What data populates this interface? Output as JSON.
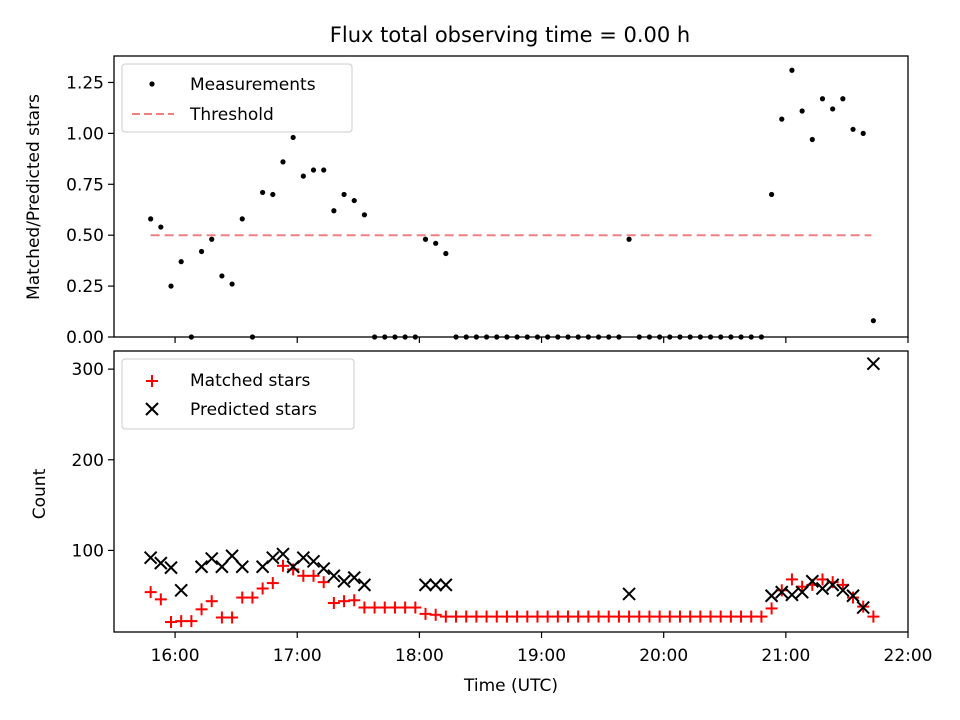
{
  "chart_data": [
    {
      "type": "scatter",
      "title": "Flux total observing time = 0.00 h",
      "ylabel": "Matched/Predicted stars",
      "xlabel": "",
      "xlim": [
        "15:30",
        "22:00"
      ],
      "ylim": [
        0,
        1.38
      ],
      "yticks": [
        0,
        0.25,
        0.5,
        0.75,
        1.0,
        1.25
      ],
      "ytick_labels": [
        "0.00",
        "0.25",
        "0.50",
        "0.75",
        "1.00",
        "1.25"
      ],
      "xticks": [
        "16:00",
        "17:00",
        "18:00",
        "19:00",
        "20:00",
        "21:00",
        "22:00"
      ],
      "legend": {
        "placement": "upper left",
        "entries": [
          "Measurements",
          "Threshold"
        ]
      },
      "threshold": {
        "name": "Threshold",
        "value": 0.5,
        "x_range": [
          "15:48",
          "21:42"
        ],
        "color": "#f08080",
        "style": "dashed"
      },
      "series": [
        {
          "name": "Measurements",
          "marker": "dot",
          "color": "#000000",
          "points": [
            [
              "15:48",
              0.58
            ],
            [
              "15:53",
              0.54
            ],
            [
              "15:58",
              0.25
            ],
            [
              "16:03",
              0.37
            ],
            [
              "16:08",
              0.0
            ],
            [
              "16:13",
              0.42
            ],
            [
              "16:18",
              0.48
            ],
            [
              "16:23",
              0.3
            ],
            [
              "16:28",
              0.26
            ],
            [
              "16:33",
              0.58
            ],
            [
              "16:38",
              0.0
            ],
            [
              "16:43",
              0.71
            ],
            [
              "16:48",
              0.7
            ],
            [
              "16:53",
              0.86
            ],
            [
              "16:58",
              0.98
            ],
            [
              "17:03",
              0.79
            ],
            [
              "17:08",
              0.82
            ],
            [
              "17:13",
              0.82
            ],
            [
              "17:18",
              0.62
            ],
            [
              "17:23",
              0.7
            ],
            [
              "17:28",
              0.67
            ],
            [
              "17:33",
              0.6
            ],
            [
              "17:38",
              0.0
            ],
            [
              "17:43",
              0.0
            ],
            [
              "17:48",
              0.0
            ],
            [
              "17:53",
              0.0
            ],
            [
              "17:58",
              0.0
            ],
            [
              "18:03",
              0.48
            ],
            [
              "18:08",
              0.46
            ],
            [
              "18:13",
              0.41
            ],
            [
              "18:18",
              0.0
            ],
            [
              "18:23",
              0.0
            ],
            [
              "18:28",
              0.0
            ],
            [
              "18:33",
              0.0
            ],
            [
              "18:38",
              0.0
            ],
            [
              "18:43",
              0.0
            ],
            [
              "18:48",
              0.0
            ],
            [
              "18:53",
              0.0
            ],
            [
              "18:58",
              0.0
            ],
            [
              "19:03",
              0.0
            ],
            [
              "19:08",
              0.0
            ],
            [
              "19:13",
              0.0
            ],
            [
              "19:18",
              0.0
            ],
            [
              "19:23",
              0.0
            ],
            [
              "19:28",
              0.0
            ],
            [
              "19:33",
              0.0
            ],
            [
              "19:38",
              0.0
            ],
            [
              "19:43",
              0.48
            ],
            [
              "19:48",
              0.0
            ],
            [
              "19:53",
              0.0
            ],
            [
              "19:58",
              0.0
            ],
            [
              "20:03",
              0.0
            ],
            [
              "20:08",
              0.0
            ],
            [
              "20:13",
              0.0
            ],
            [
              "20:18",
              0.0
            ],
            [
              "20:23",
              0.0
            ],
            [
              "20:28",
              0.0
            ],
            [
              "20:33",
              0.0
            ],
            [
              "20:38",
              0.0
            ],
            [
              "20:43",
              0.0
            ],
            [
              "20:48",
              0.0
            ],
            [
              "20:53",
              0.7
            ],
            [
              "20:58",
              1.07
            ],
            [
              "21:03",
              1.31
            ],
            [
              "21:08",
              1.11
            ],
            [
              "21:13",
              0.97
            ],
            [
              "21:18",
              1.17
            ],
            [
              "21:23",
              1.12
            ],
            [
              "21:28",
              1.17
            ],
            [
              "21:33",
              1.02
            ],
            [
              "21:38",
              1.0
            ],
            [
              "21:43",
              0.08
            ]
          ]
        }
      ]
    },
    {
      "type": "scatter",
      "title": "",
      "ylabel": "Count",
      "xlabel": "Time (UTC)",
      "xlim": [
        "15:30",
        "22:00"
      ],
      "ylim": [
        10,
        320
      ],
      "yticks": [
        100,
        200,
        300
      ],
      "ytick_labels": [
        "100",
        "200",
        "300"
      ],
      "xticks": [
        "16:00",
        "17:00",
        "18:00",
        "19:00",
        "20:00",
        "21:00",
        "22:00"
      ],
      "legend": {
        "placement": "upper left",
        "entries": [
          "Matched stars",
          "Predicted stars"
        ]
      },
      "series": [
        {
          "name": "Matched stars",
          "marker": "plus",
          "color": "#ff0000",
          "points": [
            [
              "15:48",
              54
            ],
            [
              "15:53",
              46
            ],
            [
              "15:58",
              21
            ],
            [
              "16:03",
              22
            ],
            [
              "16:08",
              22
            ],
            [
              "16:13",
              35
            ],
            [
              "16:18",
              44
            ],
            [
              "16:23",
              26
            ],
            [
              "16:28",
              26
            ],
            [
              "16:33",
              48
            ],
            [
              "16:38",
              48
            ],
            [
              "16:43",
              58
            ],
            [
              "16:48",
              64
            ],
            [
              "16:53",
              83
            ],
            [
              "16:58",
              79
            ],
            [
              "17:03",
              72
            ],
            [
              "17:08",
              72
            ],
            [
              "17:13",
              65
            ],
            [
              "17:18",
              42
            ],
            [
              "17:23",
              44
            ],
            [
              "17:28",
              45
            ],
            [
              "17:33",
              37
            ],
            [
              "17:38",
              37
            ],
            [
              "17:43",
              37
            ],
            [
              "17:48",
              37
            ],
            [
              "17:53",
              37
            ],
            [
              "17:58",
              37
            ],
            [
              "18:03",
              30
            ],
            [
              "18:08",
              29
            ],
            [
              "18:13",
              27
            ],
            [
              "18:18",
              27
            ],
            [
              "18:23",
              27
            ],
            [
              "18:28",
              27
            ],
            [
              "18:33",
              27
            ],
            [
              "18:38",
              27
            ],
            [
              "18:43",
              27
            ],
            [
              "18:48",
              27
            ],
            [
              "18:53",
              27
            ],
            [
              "18:58",
              27
            ],
            [
              "19:03",
              27
            ],
            [
              "19:08",
              27
            ],
            [
              "19:13",
              27
            ],
            [
              "19:18",
              27
            ],
            [
              "19:23",
              27
            ],
            [
              "19:28",
              27
            ],
            [
              "19:33",
              27
            ],
            [
              "19:38",
              27
            ],
            [
              "19:43",
              27
            ],
            [
              "19:48",
              27
            ],
            [
              "19:53",
              27
            ],
            [
              "19:58",
              27
            ],
            [
              "20:03",
              27
            ],
            [
              "20:08",
              27
            ],
            [
              "20:13",
              27
            ],
            [
              "20:18",
              27
            ],
            [
              "20:23",
              27
            ],
            [
              "20:28",
              27
            ],
            [
              "20:33",
              27
            ],
            [
              "20:38",
              27
            ],
            [
              "20:43",
              27
            ],
            [
              "20:48",
              27
            ],
            [
              "20:53",
              36
            ],
            [
              "20:58",
              56
            ],
            [
              "21:03",
              68
            ],
            [
              "21:08",
              60
            ],
            [
              "21:13",
              62
            ],
            [
              "21:18",
              68
            ],
            [
              "21:23",
              65
            ],
            [
              "21:28",
              62
            ],
            [
              "21:33",
              48
            ],
            [
              "21:38",
              38
            ],
            [
              "21:43",
              27
            ]
          ]
        },
        {
          "name": "Predicted stars",
          "marker": "x",
          "color": "#000000",
          "points": [
            [
              "15:48",
              92
            ],
            [
              "15:53",
              86
            ],
            [
              "15:58",
              81
            ],
            [
              "16:03",
              56
            ],
            [
              "16:13",
              82
            ],
            [
              "16:18",
              91
            ],
            [
              "16:23",
              82
            ],
            [
              "16:28",
              94
            ],
            [
              "16:33",
              82
            ],
            [
              "16:43",
              82
            ],
            [
              "16:48",
              92
            ],
            [
              "16:53",
              96
            ],
            [
              "16:58",
              82
            ],
            [
              "17:03",
              92
            ],
            [
              "17:08",
              88
            ],
            [
              "17:13",
              80
            ],
            [
              "17:18",
              72
            ],
            [
              "17:23",
              66
            ],
            [
              "17:28",
              70
            ],
            [
              "17:33",
              62
            ],
            [
              "18:03",
              62
            ],
            [
              "18:08",
              62
            ],
            [
              "18:13",
              62
            ],
            [
              "19:43",
              52
            ],
            [
              "20:53",
              50
            ],
            [
              "20:58",
              54
            ],
            [
              "21:03",
              51
            ],
            [
              "21:08",
              54
            ],
            [
              "21:13",
              66
            ],
            [
              "21:18",
              58
            ],
            [
              "21:23",
              62
            ],
            [
              "21:28",
              56
            ],
            [
              "21:33",
              50
            ],
            [
              "21:38",
              37
            ],
            [
              "21:43",
              306
            ]
          ]
        }
      ]
    }
  ]
}
